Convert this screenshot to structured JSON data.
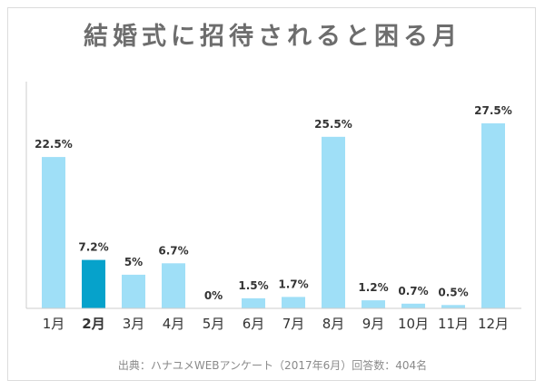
{
  "title": "結婚式に招待されると困る月",
  "source": "出典：ハナユメWEBアンケート（2017年6月）回答数：404名",
  "colors": {
    "bar": "#9fdff7",
    "highlight": "#06a2cb",
    "text": "#333333",
    "title": "#6d6d6d",
    "axis": "#cccccc"
  },
  "chart_data": {
    "type": "bar",
    "title": "結婚式に招待されると困る月",
    "categories": [
      "1月",
      "2月",
      "3月",
      "4月",
      "5月",
      "6月",
      "7月",
      "8月",
      "9月",
      "10月",
      "11月",
      "12月"
    ],
    "values": [
      22.5,
      7.2,
      5,
      6.7,
      0,
      1.5,
      1.7,
      25.5,
      1.2,
      0.7,
      0.5,
      27.5
    ],
    "value_labels": [
      "22.5%",
      "7.2%",
      "5%",
      "6.7%",
      "0%",
      "1.5%",
      "1.7%",
      "25.5%",
      "1.2%",
      "0.7%",
      "0.5%",
      "27.5%"
    ],
    "highlight_category": "2月",
    "xlabel": "",
    "ylabel": "",
    "ylim": [
      0,
      27.5
    ],
    "grid": false,
    "legend": "none"
  }
}
